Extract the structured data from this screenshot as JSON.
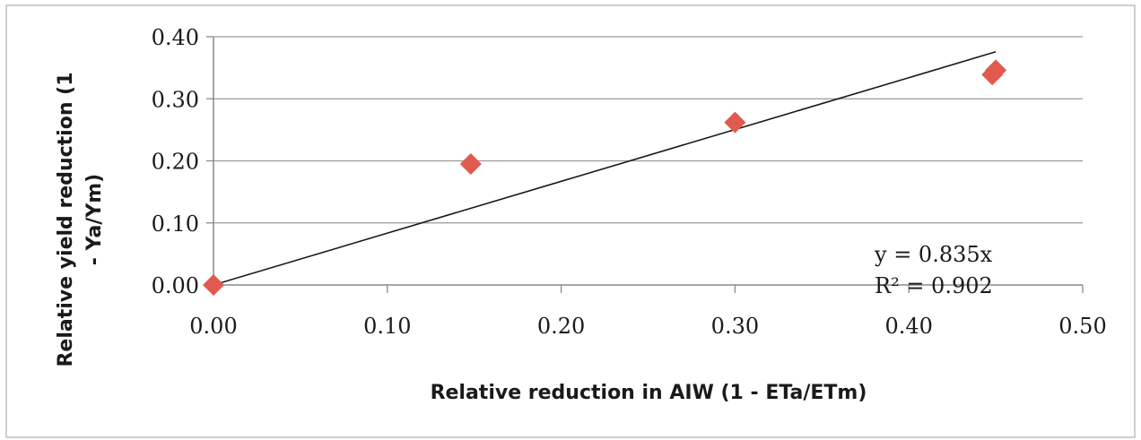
{
  "chart_data": {
    "type": "scatter",
    "xlabel": "Relative reduction in AIW (1 - ETa/ETm)",
    "ylabel_lines": [
      "Relative yield reduction (1",
      "- Ya/Ym)"
    ],
    "xlim": [
      0,
      0.5
    ],
    "ylim": [
      0,
      0.4
    ],
    "x_ticks": [
      "0.00",
      "0.10",
      "0.20",
      "0.30",
      "0.40",
      "0.50"
    ],
    "y_ticks": [
      "0.00",
      "0.10",
      "0.20",
      "0.30",
      "0.40"
    ],
    "grid": "horizontal",
    "marker_color": "#e05a4f",
    "trendline_color": "#1a1a1a",
    "series": [
      {
        "points": [
          {
            "x": 0.0,
            "y": 0.0
          },
          {
            "x": 0.148,
            "y": 0.195
          },
          {
            "x": 0.3,
            "y": 0.262
          },
          {
            "x": 0.448,
            "y": 0.339
          },
          {
            "x": 0.45,
            "y": 0.346
          }
        ]
      }
    ],
    "trendline": {
      "slope": 0.835,
      "x_range": [
        0,
        0.45
      ],
      "equation": "y = 0.835x",
      "r_squared": "R² = 0.902"
    }
  }
}
